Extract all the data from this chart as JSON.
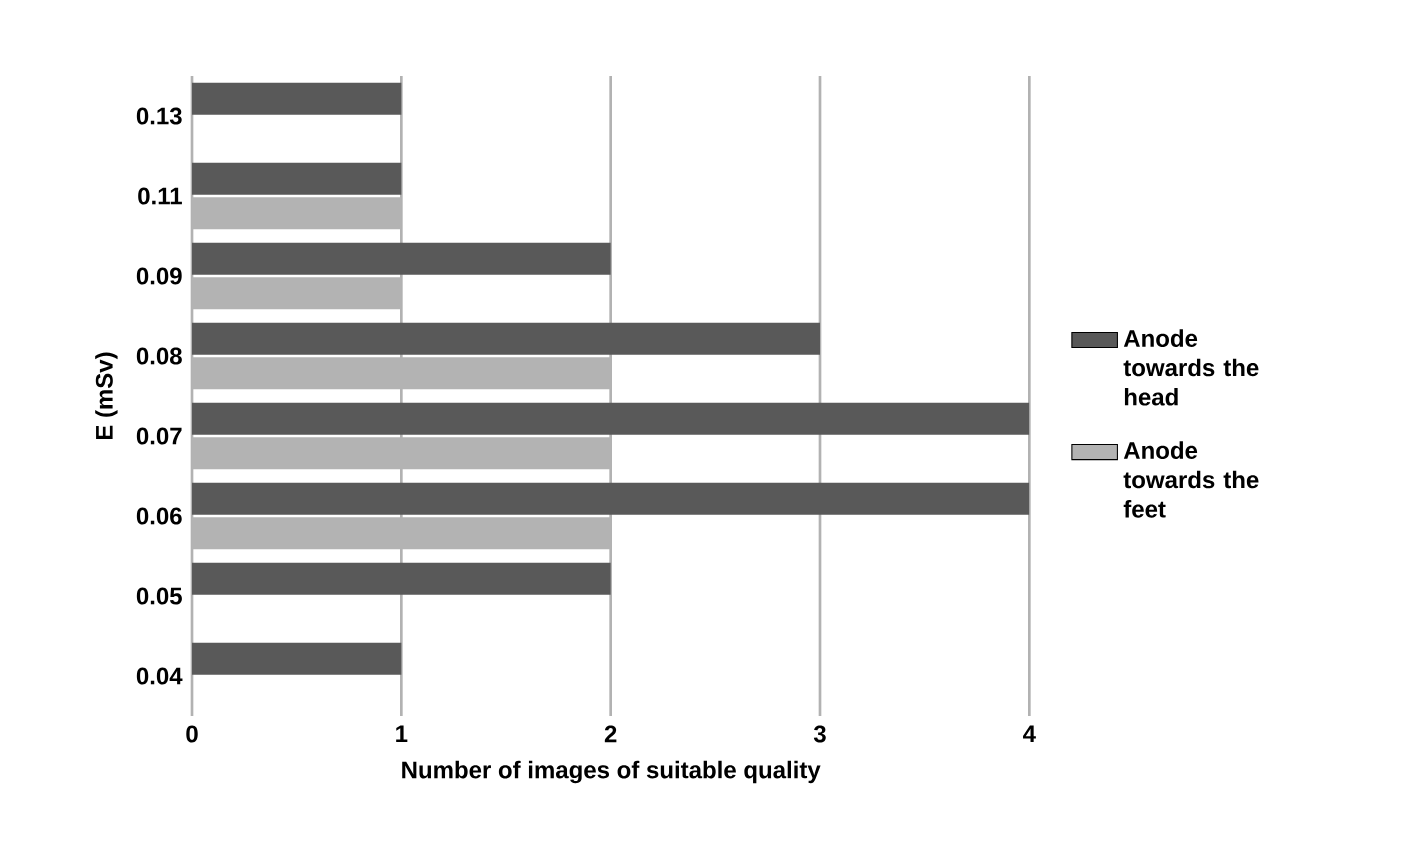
{
  "chart_data": {
    "type": "bar",
    "orientation": "horizontal",
    "xlabel": "Number of images of suitable quality",
    "ylabel": "E (mSv)",
    "categories": [
      "0.13",
      "0.11",
      "0.09",
      "0.08",
      "0.07",
      "0.06",
      "0.05",
      "0.04"
    ],
    "series": [
      {
        "name": "Anode towards the head",
        "color": "#595959",
        "values": [
          1,
          1,
          2,
          3,
          4,
          4,
          2,
          1
        ]
      },
      {
        "name": "Anode towards the feet",
        "color": "#b3b3b3",
        "values": [
          null,
          1,
          1,
          2,
          2,
          2,
          null,
          null
        ]
      }
    ],
    "xlim": [
      0,
      4
    ],
    "xticks": [
      0,
      1,
      2,
      3,
      4
    ],
    "grid": "x",
    "legend": "right"
  }
}
